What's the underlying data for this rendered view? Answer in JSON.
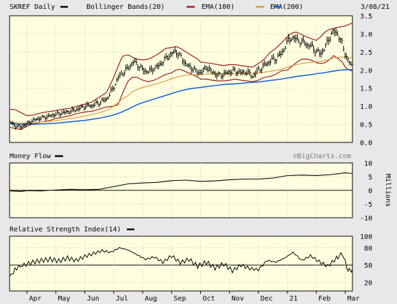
{
  "colors": {
    "background": "#e8e8e8",
    "panel": "#ffffe0",
    "border": "#000000",
    "grid": "#c4c4c4",
    "price": "#000000",
    "bollinger": "#9c1a1a",
    "ema100": "#d99a3a",
    "ema200": "#1c63d6",
    "money_flow": "#000000",
    "rsi": "#000000"
  },
  "header": {
    "title": "SKREF Daily",
    "date": "3/08/21",
    "watermark": "©BigCharts.com"
  },
  "legend": [
    {
      "label": "Bollinger Bands(20)",
      "color": "#9c1a1a"
    },
    {
      "label": "EMA(100)",
      "color": "#d99a3a"
    },
    {
      "label": "EMA(200)",
      "color": "#1c63d6"
    }
  ],
  "x_axis": {
    "labels": [
      "Apr",
      "May",
      "Jun",
      "Jul",
      "Aug",
      "Sep",
      "Oct",
      "Nov",
      "Dec",
      "21",
      "Feb",
      "Mar"
    ],
    "positions": [
      0,
      1.0,
      2.0,
      3.0,
      4.0,
      5.0,
      6.0,
      7.0,
      8.0,
      9.0,
      10.0,
      11.0
    ]
  },
  "chart_data": [
    {
      "type": "line",
      "panel": "price",
      "title": "SKREF Daily",
      "ylim": [
        0.0,
        3.5
      ],
      "yticks": [
        "0.0",
        "0.5",
        "1.0",
        "1.5",
        "2.0",
        "2.5",
        "3.0",
        "3.5"
      ],
      "x_range": [
        -0.6,
        11.25
      ],
      "x": [
        -0.6,
        -0.4,
        -0.2,
        0.0,
        0.25,
        0.5,
        0.75,
        1.0,
        1.25,
        1.5,
        1.75,
        2.0,
        2.25,
        2.5,
        2.75,
        3.0,
        3.15,
        3.3,
        3.5,
        3.65,
        3.8,
        4.0,
        4.2,
        4.4,
        4.6,
        4.8,
        5.0,
        5.15,
        5.3,
        5.5,
        5.7,
        5.9,
        6.0,
        6.2,
        6.4,
        6.6,
        6.8,
        7.0,
        7.2,
        7.4,
        7.6,
        7.8,
        8.0,
        8.2,
        8.4,
        8.6,
        8.8,
        9.0,
        9.15,
        9.3,
        9.5,
        9.7,
        9.9,
        10.0,
        10.15,
        10.3,
        10.45,
        10.6,
        10.75,
        10.9,
        11.0,
        11.1,
        11.2,
        11.25
      ],
      "series": [
        {
          "style": "ohlc",
          "color": "#000000",
          "values": [
            0.58,
            0.45,
            0.42,
            0.52,
            0.62,
            0.68,
            0.72,
            0.78,
            0.82,
            0.86,
            0.92,
            1.0,
            1.02,
            1.1,
            1.2,
            1.52,
            1.78,
            1.92,
            2.05,
            2.22,
            2.18,
            2.0,
            1.95,
            2.05,
            2.15,
            2.32,
            2.45,
            2.52,
            2.38,
            2.15,
            2.05,
            1.95,
            1.92,
            2.08,
            1.95,
            1.85,
            1.88,
            1.95,
            1.98,
            1.92,
            1.95,
            1.82,
            2.0,
            2.12,
            2.25,
            2.32,
            2.45,
            2.78,
            2.9,
            2.85,
            2.78,
            2.7,
            2.62,
            2.52,
            2.45,
            2.62,
            2.88,
            3.08,
            2.98,
            2.72,
            2.42,
            2.28,
            2.12,
            2.18
          ]
        },
        {
          "name": "Bollinger Bands(20)",
          "color": "#9c1a1a",
          "values": [
            0.92,
            0.9,
            0.82,
            0.74,
            0.76,
            0.82,
            0.85,
            0.88,
            0.92,
            0.95,
            1.0,
            1.06,
            1.12,
            1.25,
            1.38,
            1.8,
            2.1,
            2.38,
            2.42,
            2.35,
            2.3,
            2.28,
            2.3,
            2.38,
            2.48,
            2.6,
            2.62,
            2.65,
            2.6,
            2.5,
            2.4,
            2.3,
            2.22,
            2.2,
            2.18,
            2.15,
            2.12,
            2.15,
            2.15,
            2.12,
            2.1,
            2.08,
            2.18,
            2.3,
            2.48,
            2.6,
            2.75,
            2.92,
            3.02,
            3.05,
            2.98,
            2.9,
            2.85,
            2.82,
            2.92,
            3.05,
            3.12,
            3.15,
            3.18,
            3.2,
            3.22,
            3.25,
            3.28,
            3.3
          ]
        },
        {
          "name": "Bollinger Bands(20) lower",
          "color": "#9c1a1a",
          "values": [
            0.42,
            0.38,
            0.36,
            0.45,
            0.52,
            0.56,
            0.6,
            0.66,
            0.7,
            0.74,
            0.8,
            0.84,
            0.86,
            0.92,
            0.98,
            1.0,
            1.05,
            1.35,
            1.7,
            1.8,
            1.8,
            1.72,
            1.68,
            1.72,
            1.8,
            1.88,
            1.92,
            2.0,
            2.02,
            1.95,
            1.88,
            1.8,
            1.75,
            1.75,
            1.72,
            1.7,
            1.7,
            1.72,
            1.75,
            1.72,
            1.7,
            1.68,
            1.72,
            1.8,
            1.82,
            1.88,
            1.98,
            2.0,
            2.1,
            2.2,
            2.3,
            2.3,
            2.25,
            2.2,
            2.18,
            2.2,
            2.28,
            2.4,
            2.32,
            2.22,
            2.08,
            2.02,
            1.98,
            2.0
          ]
        },
        {
          "name": "EMA(100)",
          "color": "#d99a3a",
          "values": [
            0.55,
            0.54,
            0.53,
            0.53,
            0.54,
            0.56,
            0.58,
            0.6,
            0.63,
            0.66,
            0.69,
            0.73,
            0.77,
            0.82,
            0.88,
            1.0,
            1.1,
            1.2,
            1.3,
            1.4,
            1.46,
            1.52,
            1.56,
            1.6,
            1.65,
            1.7,
            1.76,
            1.8,
            1.83,
            1.86,
            1.87,
            1.88,
            1.88,
            1.89,
            1.89,
            1.89,
            1.89,
            1.9,
            1.9,
            1.9,
            1.91,
            1.91,
            1.92,
            1.94,
            1.96,
            1.99,
            2.02,
            2.08,
            2.12,
            2.15,
            2.18,
            2.2,
            2.22,
            2.23,
            2.24,
            2.26,
            2.29,
            2.33,
            2.35,
            2.36,
            2.36,
            2.35,
            2.34,
            2.34
          ]
        },
        {
          "name": "EMA(200)",
          "color": "#1c63d6",
          "values": [
            0.52,
            0.51,
            0.5,
            0.5,
            0.5,
            0.51,
            0.52,
            0.53,
            0.55,
            0.57,
            0.59,
            0.61,
            0.64,
            0.67,
            0.71,
            0.76,
            0.8,
            0.85,
            0.92,
            0.98,
            1.04,
            1.1,
            1.15,
            1.2,
            1.25,
            1.3,
            1.35,
            1.39,
            1.42,
            1.46,
            1.49,
            1.51,
            1.52,
            1.54,
            1.56,
            1.58,
            1.6,
            1.61,
            1.62,
            1.63,
            1.65,
            1.66,
            1.67,
            1.69,
            1.71,
            1.73,
            1.75,
            1.78,
            1.8,
            1.82,
            1.84,
            1.86,
            1.88,
            1.9,
            1.91,
            1.93,
            1.95,
            1.97,
            1.99,
            2.0,
            2.01,
            2.01,
            2.01,
            2.01
          ]
        }
      ]
    },
    {
      "type": "area",
      "panel": "money_flow",
      "title": "Money Flow",
      "ylabel": "Millions",
      "ylim": [
        -10,
        10
      ],
      "yticks": [
        "10",
        "5",
        "0",
        "-5",
        "-10"
      ],
      "x": [
        -0.6,
        -0.2,
        0.0,
        0.5,
        1.0,
        1.5,
        2.0,
        2.5,
        3.0,
        3.5,
        4.0,
        4.5,
        5.0,
        5.5,
        6.0,
        6.5,
        7.0,
        7.5,
        8.0,
        8.5,
        9.0,
        9.5,
        10.0,
        10.5,
        11.0,
        11.25
      ],
      "series": [
        {
          "name": "Money Flow",
          "color": "#000000",
          "values": [
            -0.3,
            -0.2,
            -0.1,
            0.0,
            0.1,
            0.2,
            0.3,
            0.6,
            1.3,
            2.2,
            2.8,
            3.1,
            3.4,
            3.6,
            3.4,
            3.6,
            3.7,
            4.0,
            4.3,
            4.6,
            5.2,
            5.5,
            5.6,
            5.8,
            6.2,
            6.3
          ]
        }
      ]
    },
    {
      "type": "line",
      "panel": "rsi",
      "title": "Relative Strength Index(14)",
      "ylim": [
        0,
        100
      ],
      "yticks": [
        "100",
        "80",
        "50",
        "20"
      ],
      "reference_line": 50,
      "x": [
        -0.6,
        -0.35,
        -0.1,
        0.2,
        0.5,
        0.8,
        1.1,
        1.4,
        1.7,
        2.0,
        2.3,
        2.6,
        2.9,
        3.2,
        3.5,
        3.8,
        4.1,
        4.4,
        4.7,
        5.0,
        5.3,
        5.6,
        5.9,
        6.2,
        6.5,
        6.8,
        7.1,
        7.4,
        7.7,
        8.0,
        8.3,
        8.6,
        8.9,
        9.2,
        9.5,
        9.8,
        10.1,
        10.4,
        10.7,
        10.9,
        11.1,
        11.25
      ],
      "series": [
        {
          "name": "Relative Strength Index(14)",
          "color": "#000000",
          "values": [
            30,
            45,
            50,
            55,
            58,
            60,
            57,
            62,
            58,
            65,
            70,
            75,
            72,
            80,
            76,
            68,
            60,
            64,
            55,
            66,
            54,
            60,
            48,
            55,
            45,
            52,
            40,
            50,
            44,
            42,
            58,
            55,
            62,
            72,
            58,
            66,
            56,
            48,
            62,
            70,
            40,
            42
          ]
        }
      ]
    }
  ]
}
